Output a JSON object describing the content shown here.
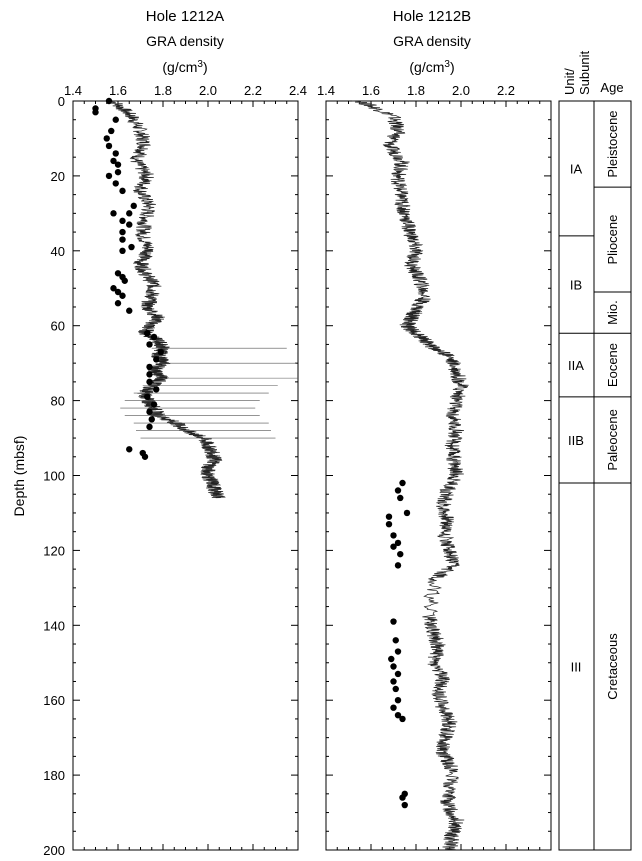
{
  "chart_data": [
    {
      "type": "line",
      "title": "Hole 1212A",
      "xlabel": "GRA density",
      "xunit": "(g/cm",
      "xunit_sup": "3",
      "xunit_close": ")",
      "ylabel": "Depth (mbsf)",
      "xlim": [
        1.4,
        2.4
      ],
      "ylim": [
        200,
        0
      ],
      "xticks": [
        "1.4",
        "1.6",
        "1.8",
        "2.0",
        "2.2",
        "2.4"
      ],
      "yticks": [
        "0",
        "20",
        "40",
        "60",
        "80",
        "100",
        "120",
        "140",
        "160",
        "180",
        "200"
      ],
      "series": [
        {
          "kind": "line",
          "x": [
            1.58,
            1.66,
            1.7,
            1.72,
            1.68,
            1.73,
            1.7,
            1.74,
            1.72,
            1.71,
            1.74,
            1.7,
            1.72,
            1.76,
            1.75,
            1.73,
            1.78,
            1.74,
            1.72,
            1.78,
            1.8,
            1.78,
            1.8,
            1.76,
            1.8,
            1.75,
            1.72,
            1.73,
            1.76,
            1.78,
            1.86,
            1.9,
            1.98,
            2.0,
            2.02,
            2.03,
            2.0,
            2.0,
            2.02,
            2.03,
            2.05,
            2.0,
            2.04,
            2.06,
            1.96,
            1.92,
            1.88,
            1.86,
            1.88,
            1.92,
            1.93,
            1.95
          ],
          "y": [
            0,
            4,
            8,
            12,
            16,
            20,
            24,
            28,
            32,
            36,
            40,
            43,
            46,
            49,
            52,
            55,
            58,
            60,
            62,
            64,
            66,
            68,
            70,
            72,
            74,
            76,
            78,
            80,
            82,
            84,
            86,
            88,
            90,
            92,
            94,
            96,
            98,
            100,
            102,
            104,
            106,
            66,
            70,
            74,
            76,
            78,
            80,
            82,
            84,
            86,
            88,
            90
          ]
        },
        {
          "kind": "points",
          "x": [
            1.56,
            1.5,
            1.5,
            1.59,
            1.57,
            1.55,
            1.56,
            1.59,
            1.58,
            1.6,
            1.6,
            1.56,
            1.59,
            1.62,
            1.67,
            1.58,
            1.65,
            1.62,
            1.65,
            1.62,
            1.62,
            1.66,
            1.62,
            1.6,
            1.62,
            1.63,
            1.58,
            1.6,
            1.62,
            1.6,
            1.65,
            1.73,
            1.76,
            1.74,
            1.79,
            1.77,
            1.74,
            1.74,
            1.74,
            1.77,
            1.73,
            1.76,
            1.74,
            1.75,
            1.74,
            1.65,
            1.71,
            1.72
          ],
          "y": [
            0,
            2,
            3,
            5,
            8,
            10,
            12,
            14,
            16,
            17,
            19,
            20,
            22,
            24,
            28,
            30,
            30,
            32,
            33,
            35,
            37,
            39,
            40,
            46,
            47,
            48,
            50,
            51,
            52,
            54,
            56,
            62,
            63,
            65,
            67,
            69,
            71,
            73,
            75,
            77,
            79,
            81,
            83,
            85,
            87,
            93,
            94,
            95
          ]
        }
      ]
    },
    {
      "type": "line",
      "title": "Hole 1212B",
      "xlabel": "GRA density",
      "xunit": "(g/cm",
      "xunit_sup": "3",
      "xunit_close": ")",
      "xlim": [
        1.4,
        2.4
      ],
      "ylim": [
        200,
        0
      ],
      "xticks": [
        "1.4",
        "1.6",
        "1.8",
        "2.0",
        "2.2"
      ],
      "series": [
        {
          "kind": "line",
          "x": [
            1.55,
            1.7,
            1.72,
            1.68,
            1.74,
            1.72,
            1.73,
            1.74,
            1.76,
            1.78,
            1.8,
            1.78,
            1.82,
            1.84,
            1.8,
            1.78,
            1.76,
            1.8,
            1.84,
            1.88,
            1.95,
            1.98,
            2.0,
            1.98,
            1.96,
            1.98,
            1.96,
            1.97,
            1.98,
            1.94,
            1.92,
            1.94,
            1.93,
            1.95,
            1.96,
            1.88,
            1.86,
            1.88,
            1.9,
            1.88,
            1.92,
            1.9,
            1.92,
            1.95,
            1.93,
            1.92,
            1.96,
            1.95,
            1.94,
            1.98,
            1.96,
            1.95
          ],
          "y": [
            0,
            4,
            8,
            12,
            16,
            20,
            24,
            28,
            32,
            36,
            40,
            44,
            48,
            52,
            56,
            58,
            60,
            62,
            64,
            66,
            68,
            72,
            76,
            80,
            84,
            88,
            92,
            96,
            100,
            104,
            108,
            112,
            116,
            120,
            124,
            128,
            138,
            142,
            146,
            150,
            154,
            158,
            162,
            166,
            170,
            174,
            178,
            184,
            188,
            192,
            196,
            200
          ]
        },
        {
          "kind": "points",
          "x": [
            1.74,
            1.72,
            1.73,
            1.76,
            1.68,
            1.68,
            1.7,
            1.72,
            1.7,
            1.73,
            1.72,
            1.7,
            1.71,
            1.72,
            1.69,
            1.7,
            1.72,
            1.7,
            1.71,
            1.72,
            1.7,
            1.72,
            1.74,
            1.75,
            1.74,
            1.75
          ],
          "y": [
            102,
            104,
            106,
            110,
            111,
            113,
            116,
            118,
            119,
            121,
            124,
            139,
            144,
            147,
            149,
            151,
            153,
            155,
            157,
            160,
            162,
            164,
            165,
            185,
            186,
            188
          ]
        }
      ]
    }
  ],
  "unit_column": {
    "header_unit": "Unit/",
    "header_subunit": "Subunit",
    "header_age": "Age",
    "units": [
      {
        "label": "IA",
        "top": 0,
        "bottom": 36
      },
      {
        "label": "IB",
        "top": 36,
        "bottom": 62
      },
      {
        "label": "IIA",
        "top": 62,
        "bottom": 79
      },
      {
        "label": "IIB",
        "top": 79,
        "bottom": 102
      },
      {
        "label": "III",
        "top": 102,
        "bottom": 200
      }
    ],
    "ages": [
      {
        "label": "Pleistocene",
        "top": 0,
        "bottom": 23
      },
      {
        "label": "Pliocene",
        "top": 23,
        "bottom": 51
      },
      {
        "label": "Mio.",
        "top": 51,
        "bottom": 62
      },
      {
        "label": "Eocene",
        "top": 62,
        "bottom": 79
      },
      {
        "label": "Paleocene",
        "top": 79,
        "bottom": 102
      },
      {
        "label": "Cretaceous",
        "top": 102,
        "bottom": 200
      }
    ]
  }
}
